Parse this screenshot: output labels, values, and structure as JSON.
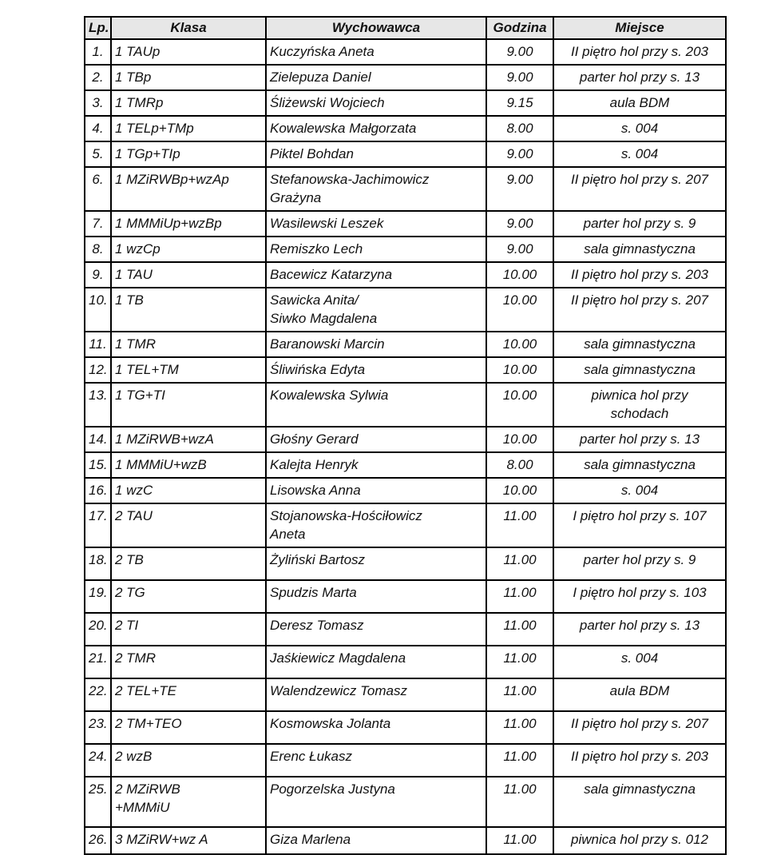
{
  "colors": {
    "header_background": "#e7e7e7",
    "border": "#000000",
    "text": "#111111",
    "page_background": "#ffffff"
  },
  "table": {
    "headers": {
      "lp": "Lp.",
      "klasa": "Klasa",
      "wychowawca": "Wychowawca",
      "godzina": "Godzina",
      "miejsce": "Miejsce"
    },
    "rows": [
      {
        "lp": "1.",
        "klasa": "1 TAUp",
        "wychowawca": "Kuczyńska Aneta",
        "godzina": "9.00",
        "miejsce": "II piętro hol przy s. 203"
      },
      {
        "lp": "2.",
        "klasa": "1 TBp",
        "wychowawca": "Zielepuza Daniel",
        "godzina": "9.00",
        "miejsce": "parter hol przy s. 13"
      },
      {
        "lp": "3.",
        "klasa": "1 TMRp",
        "wychowawca": "Śliżewski Wojciech",
        "godzina": "9.15",
        "miejsce": "aula BDM"
      },
      {
        "lp": "4.",
        "klasa": "1 TELp+TMp",
        "wychowawca": "Kowalewska Małgorzata",
        "godzina": "8.00",
        "miejsce": "s. 004"
      },
      {
        "lp": "5.",
        "klasa": "1 TGp+TIp",
        "wychowawca": "Piktel Bohdan",
        "godzina": "9.00",
        "miejsce": "s. 004"
      },
      {
        "lp": "6.",
        "klasa": "1 MZiRWBp+wzAp",
        "wychowawca": "Stefanowska-Jachimowicz\nGrażyna",
        "godzina": "9.00",
        "miejsce": "II piętro hol przy s. 207"
      },
      {
        "lp": "7.",
        "klasa": "1 MMMiUp+wzBp",
        "wychowawca": "Wasilewski Leszek",
        "godzina": "9.00",
        "miejsce": "parter hol przy s. 9"
      },
      {
        "lp": "8.",
        "klasa": "1 wzCp",
        "wychowawca": "Remiszko Lech",
        "godzina": "9.00",
        "miejsce": "sala gimnastyczna"
      },
      {
        "lp": "9.",
        "klasa": "1 TAU",
        "wychowawca": "Bacewicz Katarzyna",
        "godzina": "10.00",
        "miejsce": "II piętro hol przy s. 203"
      },
      {
        "lp": "10.",
        "klasa": "1 TB",
        "wychowawca": "Sawicka Anita/\nSiwko Magdalena",
        "godzina": "10.00",
        "miejsce": "II piętro hol przy s. 207"
      },
      {
        "lp": "11.",
        "klasa": "1 TMR",
        "wychowawca": "Baranowski Marcin",
        "godzina": "10.00",
        "miejsce": "sala gimnastyczna"
      },
      {
        "lp": "12.",
        "klasa": "1 TEL+TM",
        "wychowawca": "Śliwińska Edyta",
        "godzina": "10.00",
        "miejsce": "sala gimnastyczna"
      },
      {
        "lp": "13.",
        "klasa": "1 TG+TI",
        "wychowawca": "Kowalewska Sylwia",
        "godzina": "10.00",
        "miejsce": "piwnica hol przy\nschodach"
      },
      {
        "lp": "14.",
        "klasa": "1 MZiRWB+wzA",
        "wychowawca": "Głośny Gerard",
        "godzina": "10.00",
        "miejsce": "parter hol przy s. 13"
      },
      {
        "lp": "15.",
        "klasa": "1 MMMiU+wzB",
        "wychowawca": "Kalejta Henryk",
        "godzina": "8.00",
        "miejsce": "sala gimnastyczna"
      },
      {
        "lp": "16.",
        "klasa": "1 wzC",
        "wychowawca": "Lisowska Anna",
        "godzina": "10.00",
        "miejsce": "s. 004"
      },
      {
        "lp": "17.",
        "klasa": "2 TAU",
        "wychowawca": "Stojanowska-Hościłowicz\nAneta",
        "godzina": "11.00",
        "miejsce": "I piętro hol przy s. 107"
      },
      {
        "lp": "18.",
        "klasa": "2 TB",
        "wychowawca": "Żyliński Bartosz",
        "godzina": "11.00",
        "miejsce": "parter hol przy s. 9"
      },
      {
        "lp": "19.",
        "klasa": "2 TG",
        "wychowawca": "Spudzis Marta",
        "godzina": "11.00",
        "miejsce": "I piętro hol przy s. 103"
      },
      {
        "lp": "20.",
        "klasa": "2 TI",
        "wychowawca": "Deresz Tomasz",
        "godzina": "11.00",
        "miejsce": "parter hol przy s. 13"
      },
      {
        "lp": "21.",
        "klasa": "2 TMR",
        "wychowawca": "Jaśkiewicz Magdalena",
        "godzina": "11.00",
        "miejsce": "s. 004"
      },
      {
        "lp": "22.",
        "klasa": "2 TEL+TE",
        "wychowawca": "Walendzewicz Tomasz",
        "godzina": "11.00",
        "miejsce": "aula BDM"
      },
      {
        "lp": "23.",
        "klasa": "2 TM+TEO",
        "wychowawca": "Kosmowska Jolanta",
        "godzina": "11.00",
        "miejsce": "II piętro hol przy s. 207"
      },
      {
        "lp": "24.",
        "klasa": "2 wzB",
        "wychowawca": "Erenc Łukasz",
        "godzina": "11.00",
        "miejsce": "II piętro hol przy s. 203"
      },
      {
        "lp": "25.",
        "klasa": "2 MZiRWB\n+MMMiU",
        "wychowawca": "Pogorzelska Justyna",
        "godzina": "11.00",
        "miejsce": "sala gimnastyczna"
      },
      {
        "lp": "26.",
        "klasa": "3 MZiRW+wz A",
        "wychowawca": "Giza Marlena",
        "godzina": "11.00",
        "miejsce": "piwnica hol przy s. 012"
      }
    ]
  }
}
